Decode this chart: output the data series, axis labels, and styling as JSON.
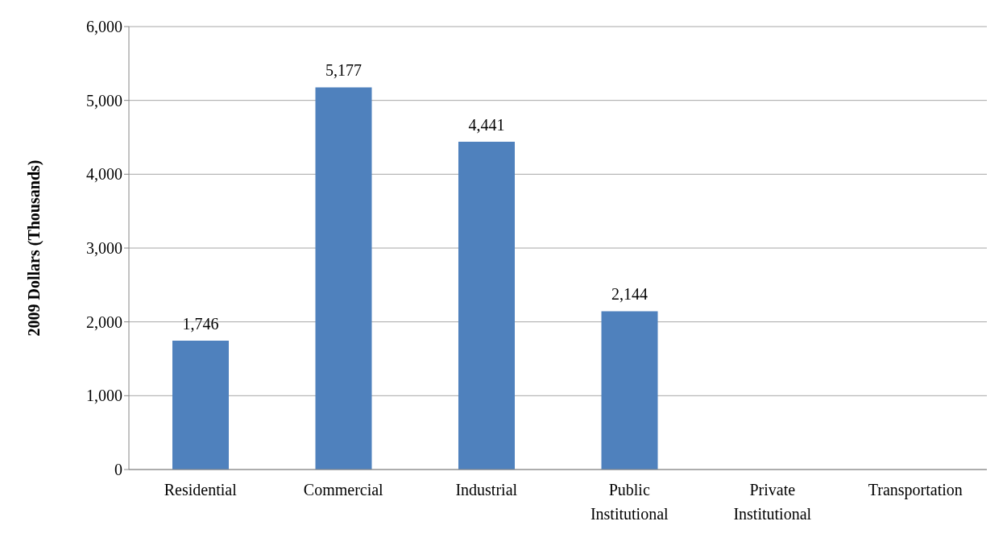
{
  "chart_data": {
    "type": "bar",
    "ylabel": "2009 Dollars  (Thousands)",
    "categories": [
      "Residential",
      "Commercial",
      "Industrial",
      "Public Institutional",
      "Private Institutional",
      "Transportation"
    ],
    "values": [
      1746,
      5177,
      4441,
      2144,
      null,
      null
    ],
    "value_labels": [
      "1,746",
      "5,177",
      "4,441",
      "2,144",
      null,
      null
    ],
    "color": "#4f81bd",
    "ylim": [
      0,
      6000
    ],
    "yticks": [
      {
        "value": 0,
        "label": "0"
      },
      {
        "value": 1000,
        "label": "1,000"
      },
      {
        "value": 2000,
        "label": "2,000"
      },
      {
        "value": 3000,
        "label": "3,000"
      },
      {
        "value": 4000,
        "label": "4,000"
      },
      {
        "value": 5000,
        "label": "5,000"
      },
      {
        "value": 6000,
        "label": "6,000"
      }
    ],
    "grid": "y",
    "legend": false
  }
}
